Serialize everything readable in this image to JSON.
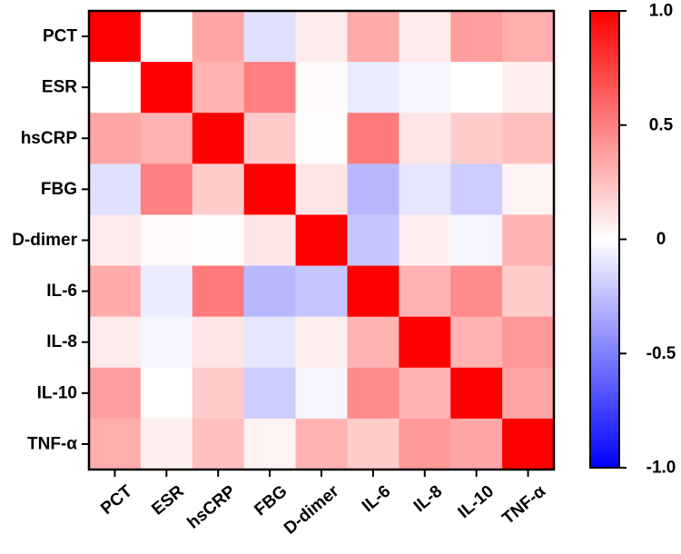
{
  "chart_data": {
    "type": "heatmap",
    "title": "",
    "xlabel": "",
    "ylabel": "",
    "row_labels": [
      "PCT",
      "ESR",
      "hsCRP",
      "FBG",
      "D-dimer",
      "IL-6",
      "IL-8",
      "IL-10",
      "TNF-α"
    ],
    "col_labels": [
      "PCT",
      "ESR",
      "hsCRP",
      "FBG",
      "D-dimer",
      "IL-6",
      "IL-8",
      "IL-10",
      "TNF-α"
    ],
    "values": [
      [
        1.0,
        0.0,
        0.35,
        -0.12,
        0.08,
        0.33,
        0.08,
        0.38,
        0.32
      ],
      [
        0.0,
        1.0,
        0.3,
        0.5,
        0.02,
        -0.08,
        -0.04,
        0.0,
        0.06
      ],
      [
        0.35,
        0.3,
        1.0,
        0.2,
        0.01,
        0.52,
        0.1,
        0.2,
        0.25
      ],
      [
        -0.12,
        0.5,
        0.2,
        1.0,
        0.1,
        -0.28,
        -0.1,
        -0.2,
        0.05
      ],
      [
        0.08,
        0.02,
        0.01,
        0.1,
        1.0,
        -0.22,
        0.06,
        -0.04,
        0.3
      ],
      [
        0.33,
        -0.08,
        0.52,
        -0.28,
        -0.22,
        1.0,
        0.3,
        0.45,
        0.2
      ],
      [
        0.08,
        -0.04,
        0.1,
        -0.1,
        0.06,
        0.3,
        1.0,
        0.3,
        0.4
      ],
      [
        0.38,
        0.0,
        0.2,
        -0.2,
        -0.04,
        0.45,
        0.3,
        1.0,
        0.35
      ],
      [
        0.32,
        0.06,
        0.25,
        0.05,
        0.3,
        0.2,
        0.4,
        0.35,
        1.0
      ]
    ],
    "color_scale": {
      "min": -1.0,
      "max": 1.0,
      "low_color": "#0000ff",
      "mid_color": "#ffffff",
      "high_color": "#ff0000",
      "ticks": [
        1.0,
        0.5,
        0,
        -0.5,
        -1.0
      ],
      "tick_labels": [
        "1.0",
        "0.5",
        "0",
        "-0.5",
        "-1.0"
      ]
    },
    "legend_placement": "right"
  }
}
